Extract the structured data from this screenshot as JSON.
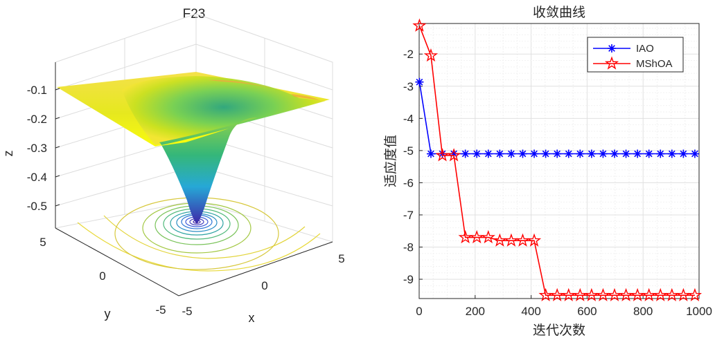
{
  "left_plot": {
    "title": "F23",
    "xlabel": "x",
    "ylabel": "y",
    "zlabel": "z",
    "z_ticks": [
      "-0.1",
      "-0.2",
      "-0.3",
      "-0.4",
      "-0.5"
    ],
    "y_ticks": [
      "5",
      "0",
      "-5"
    ],
    "x_ticks": [
      "-5",
      "0",
      "5"
    ],
    "colors": {
      "top": "#f9fb0e",
      "mid": "#35b779",
      "low": "#26a8d6",
      "bottom": "#3e26a8"
    }
  },
  "chart_data": {
    "type": "line",
    "title": "收敛曲线",
    "xlabel": "迭代次数",
    "ylabel": "适应度值",
    "xlim": [
      0,
      1000
    ],
    "ylim": [
      -9.6,
      -1.05
    ],
    "x_ticks": [
      "0",
      "200",
      "400",
      "600",
      "800",
      "1000"
    ],
    "y_ticks": [
      "-2",
      "-3",
      "-4",
      "-5",
      "-6",
      "-7",
      "-8",
      "-9"
    ],
    "legend_position": "top-right",
    "x": [
      1,
      42,
      83,
      124,
      165,
      206,
      247,
      288,
      329,
      370,
      411,
      452,
      493,
      534,
      575,
      616,
      657,
      698,
      739,
      780,
      821,
      862,
      903,
      944,
      985
    ],
    "series": [
      {
        "name": "IAO",
        "color": "#0000ff",
        "marker": "asterisk",
        "values": [
          -2.87,
          -5.1,
          -5.1,
          -5.1,
          -5.1,
          -5.1,
          -5.1,
          -5.1,
          -5.1,
          -5.1,
          -5.1,
          -5.1,
          -5.1,
          -5.1,
          -5.1,
          -5.1,
          -5.1,
          -5.1,
          -5.1,
          -5.1,
          -5.1,
          -5.1,
          -5.1,
          -5.1,
          -5.1
        ]
      },
      {
        "name": "MShOA",
        "color": "#ff0000",
        "marker": "pentagram",
        "values": [
          -1.12,
          -2.05,
          -5.15,
          -5.15,
          -7.7,
          -7.7,
          -7.7,
          -7.8,
          -7.8,
          -7.8,
          -7.8,
          -9.5,
          -9.5,
          -9.5,
          -9.5,
          -9.5,
          -9.5,
          -9.5,
          -9.5,
          -9.5,
          -9.5,
          -9.5,
          -9.5,
          -9.5,
          -9.5
        ]
      }
    ]
  }
}
